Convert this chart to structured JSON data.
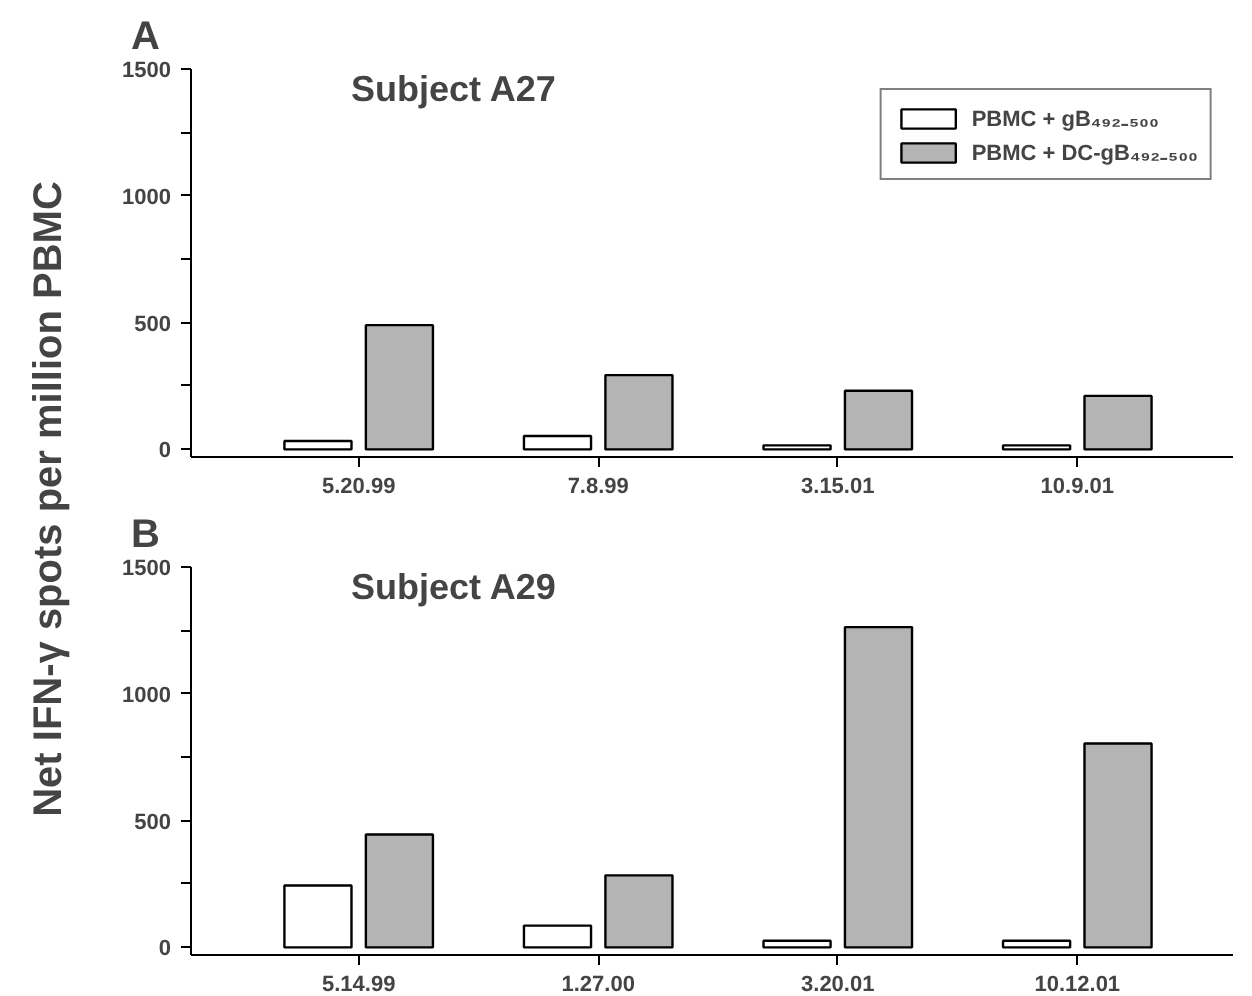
{
  "chart_data": [
    {
      "type": "bar",
      "title": "A",
      "ylabel": "Net IFN-γ spots per million PBMC",
      "annotations": [
        "Subject A27"
      ],
      "categories": [
        "5.20.99",
        "7.8.99",
        "3.15.01",
        "10.9.01"
      ],
      "series": [
        {
          "name": "PBMC + gB₄₉₂₋₅₀₀",
          "color": "#ffffff",
          "values": [
            33,
            53,
            16,
            16
          ]
        },
        {
          "name": "PBMC + DC-gB₄₉₂₋₅₀₀",
          "color": "#b4b4b4",
          "values": [
            490,
            293,
            231,
            211
          ]
        }
      ],
      "ylim": [
        -30,
        1500
      ],
      "yticks": [
        0,
        {
          "value": 250,
          "label": null
        },
        500,
        {
          "value": 750,
          "label": null
        },
        1000,
        {
          "value": 1250,
          "label": null
        },
        1500
      ],
      "grid": false,
      "legend": "top right"
    },
    {
      "type": "bar",
      "title": "B",
      "annotations": [
        "Subject A29"
      ],
      "categories": [
        "5.14.99",
        "1.27.00",
        "3.20.01",
        "10.12.01"
      ],
      "series": [
        {
          "color": "#ffffff",
          "values": [
            244,
            86,
            26,
            26
          ]
        },
        {
          "color": "#b4b4b4",
          "values": [
            445,
            284,
            1263,
            804
          ]
        }
      ],
      "ylim": [
        -30,
        1500
      ],
      "yticks": [
        0,
        {
          "value": 250,
          "label": null
        },
        500,
        {
          "value": 750,
          "label": null
        },
        1000,
        {
          "value": 1250,
          "label": null
        },
        1500
      ],
      "grid": false,
      "legend": false
    }
  ]
}
